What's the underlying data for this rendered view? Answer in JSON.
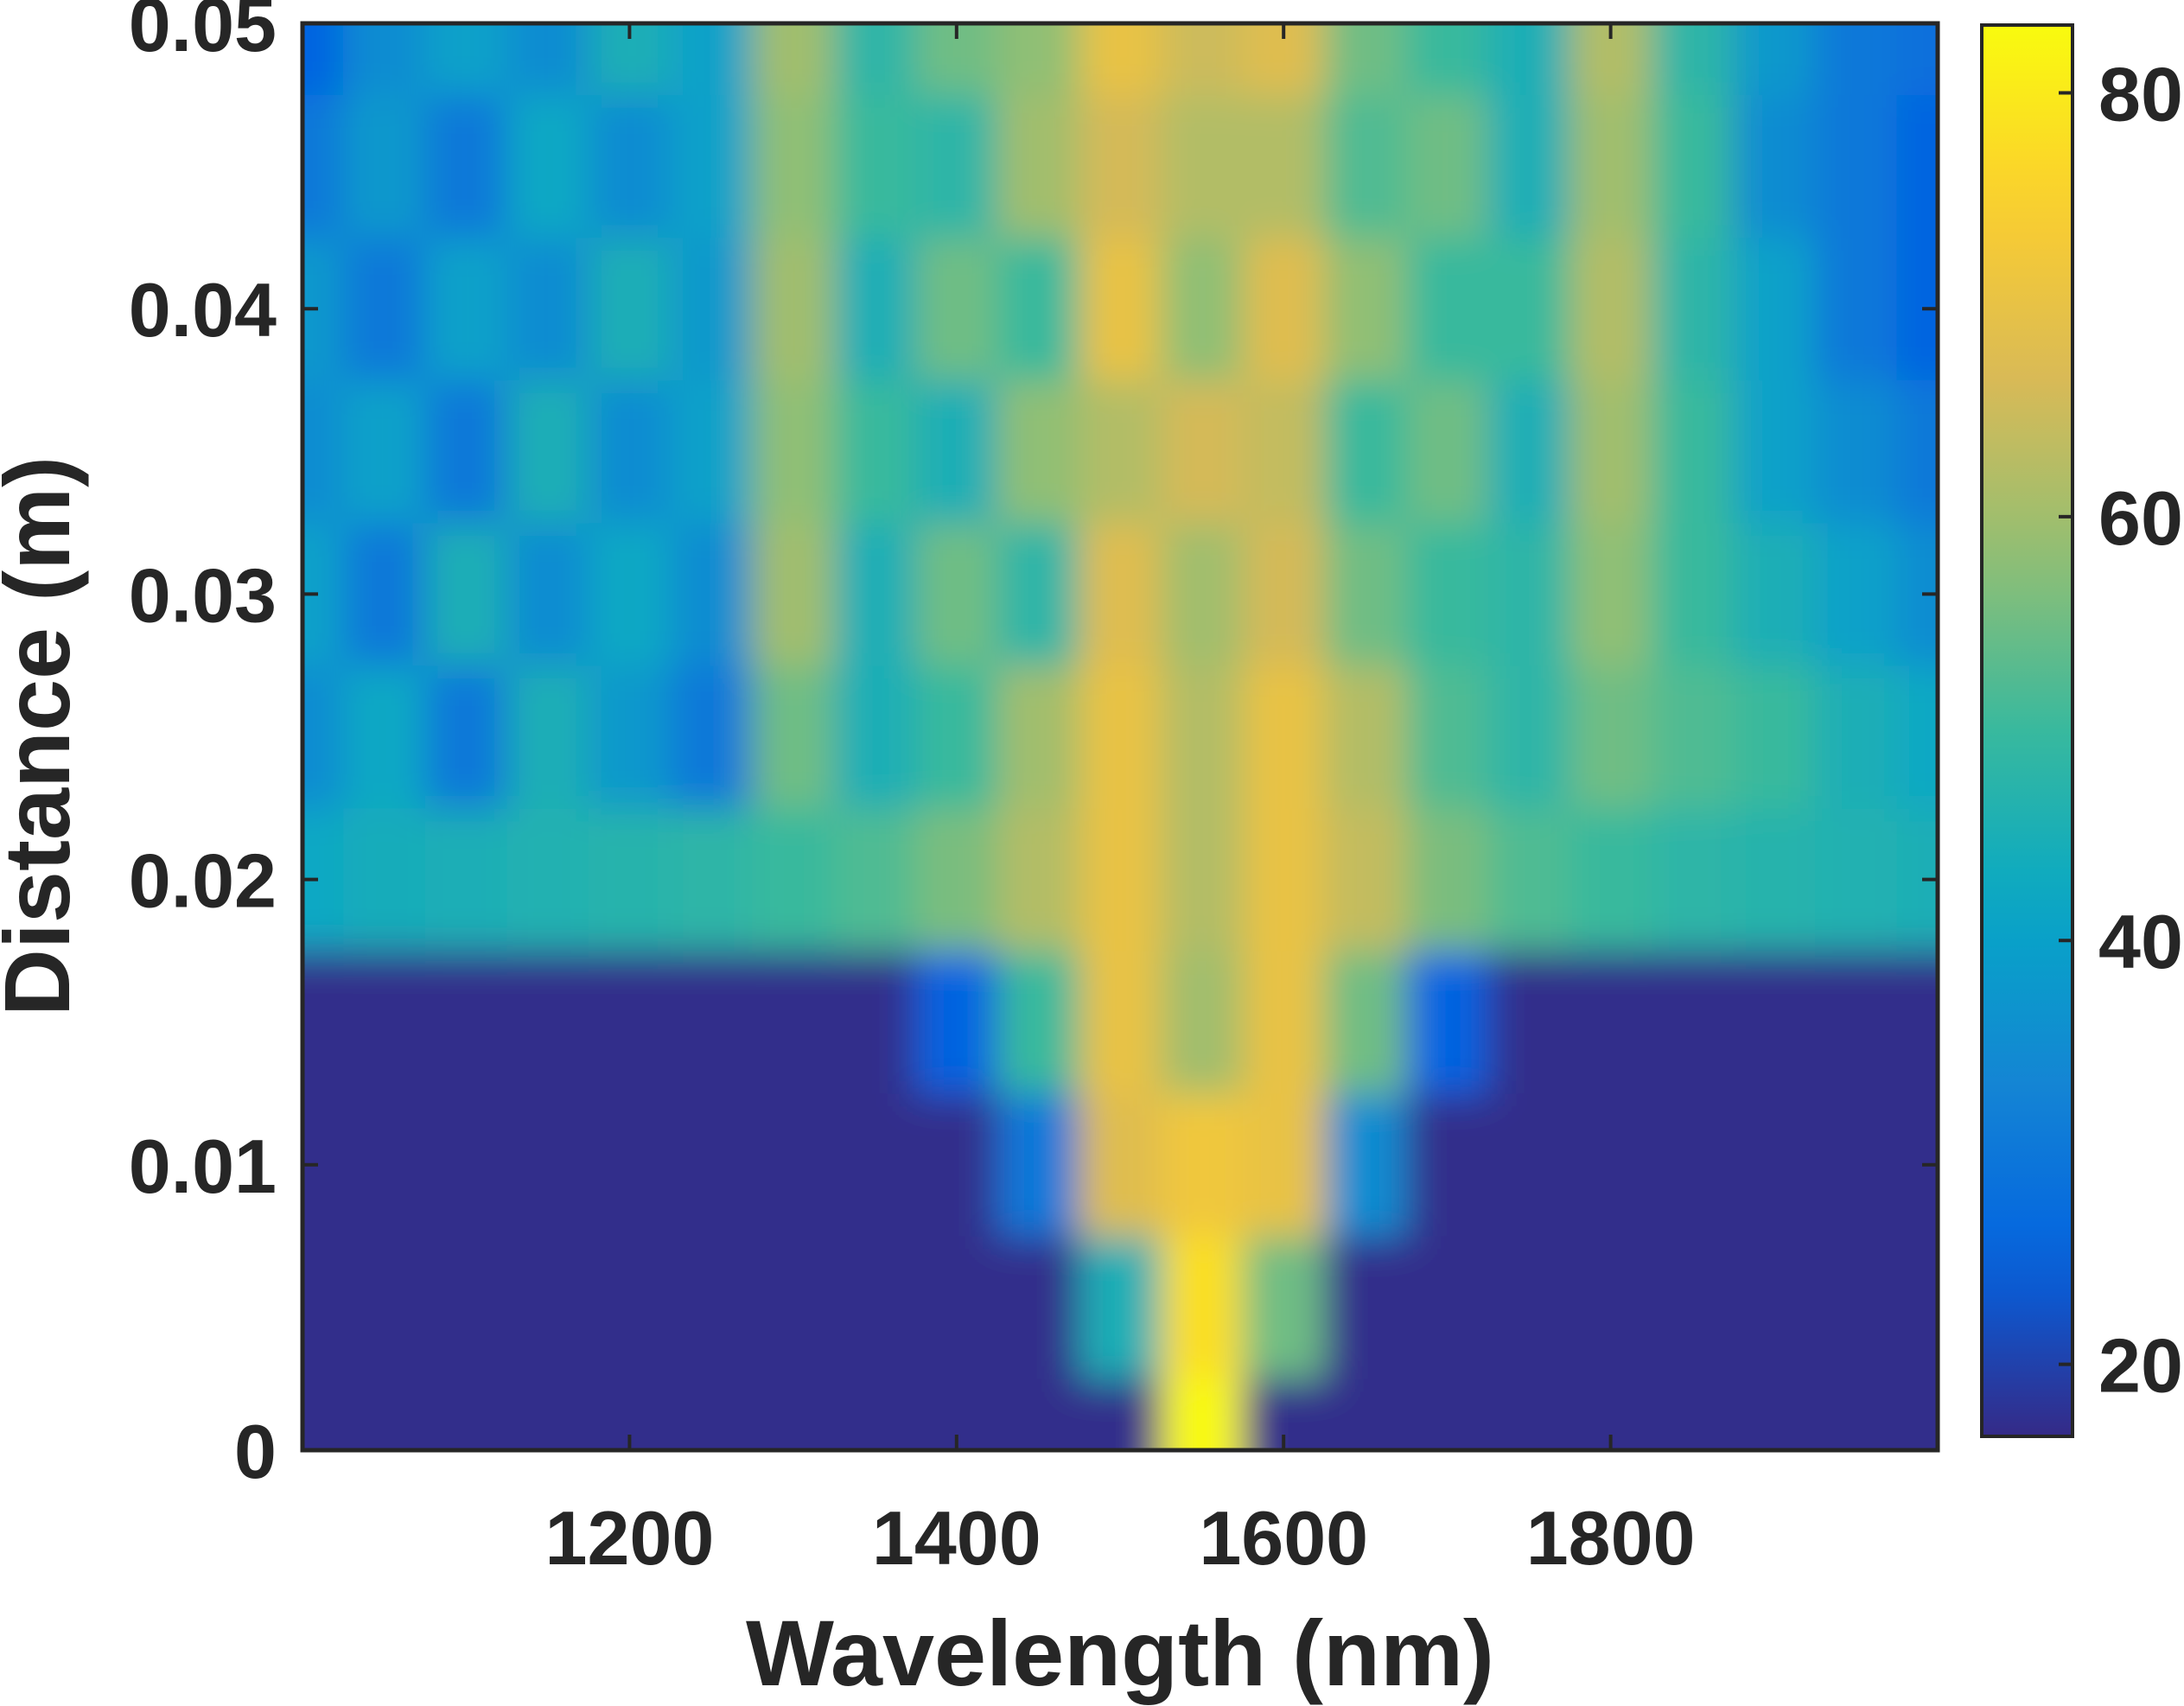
{
  "chart_data": {
    "type": "heatmap",
    "x_label": "Wavelength (nm)",
    "y_label": "Distance (m)",
    "colormap": "parula",
    "xlim": [
      1000,
      2000
    ],
    "ylim": [
      0,
      0.05
    ],
    "xticks": [
      1200,
      1400,
      1600,
      1800
    ],
    "yticks": [
      0,
      0.01,
      0.02,
      0.03,
      0.04,
      0.05
    ],
    "clim": [
      16.6,
      83.2
    ],
    "cticks": [
      20,
      40,
      60,
      80
    ],
    "x": [
      1000,
      1050,
      1100,
      1150,
      1200,
      1250,
      1300,
      1350,
      1400,
      1450,
      1500,
      1550,
      1600,
      1650,
      1700,
      1750,
      1800,
      1850,
      1900,
      1950,
      2000
    ],
    "y": [
      0,
      0.005,
      0.01,
      0.015,
      0.02,
      0.025,
      0.03,
      0.035,
      0.04,
      0.045,
      0.05
    ],
    "z": [
      [
        17,
        17,
        17,
        17,
        17,
        17,
        17,
        17,
        17,
        17,
        17,
        83,
        17,
        17,
        17,
        17,
        17,
        17,
        17,
        17,
        17
      ],
      [
        17,
        17,
        17,
        17,
        17,
        17,
        17,
        17,
        17,
        17,
        45,
        78,
        55,
        17,
        17,
        17,
        17,
        17,
        17,
        17,
        17
      ],
      [
        17,
        17,
        17,
        17,
        17,
        17,
        17,
        17,
        17,
        30,
        68,
        72,
        70,
        35,
        17,
        17,
        17,
        17,
        17,
        17,
        17
      ],
      [
        17,
        17,
        17,
        17,
        17,
        17,
        17,
        17,
        25,
        50,
        70,
        60,
        70,
        55,
        25,
        17,
        17,
        17,
        17,
        17,
        17
      ],
      [
        42,
        44,
        45,
        46,
        47,
        48,
        50,
        52,
        56,
        62,
        70,
        62,
        70,
        64,
        56,
        52,
        50,
        48,
        47,
        46,
        45
      ],
      [
        35,
        42,
        30,
        45,
        38,
        30,
        55,
        45,
        50,
        60,
        70,
        62,
        70,
        62,
        52,
        48,
        55,
        52,
        50,
        45,
        42
      ],
      [
        40,
        30,
        45,
        35,
        42,
        35,
        60,
        45,
        55,
        48,
        68,
        60,
        66,
        55,
        50,
        48,
        58,
        50,
        45,
        40,
        35
      ],
      [
        35,
        40,
        30,
        45,
        35,
        40,
        58,
        50,
        45,
        58,
        62,
        66,
        64,
        50,
        55,
        45,
        60,
        50,
        40,
        35,
        30
      ],
      [
        38,
        30,
        40,
        35,
        45,
        38,
        60,
        45,
        55,
        50,
        70,
        58,
        68,
        58,
        50,
        50,
        62,
        48,
        40,
        30,
        25
      ],
      [
        30,
        38,
        30,
        42,
        35,
        40,
        58,
        50,
        48,
        60,
        66,
        62,
        62,
        52,
        55,
        45,
        60,
        50,
        35,
        30,
        25
      ],
      [
        25,
        35,
        40,
        35,
        45,
        40,
        60,
        48,
        55,
        58,
        70,
        65,
        68,
        55,
        50,
        45,
        62,
        48,
        38,
        30,
        28
      ]
    ]
  }
}
